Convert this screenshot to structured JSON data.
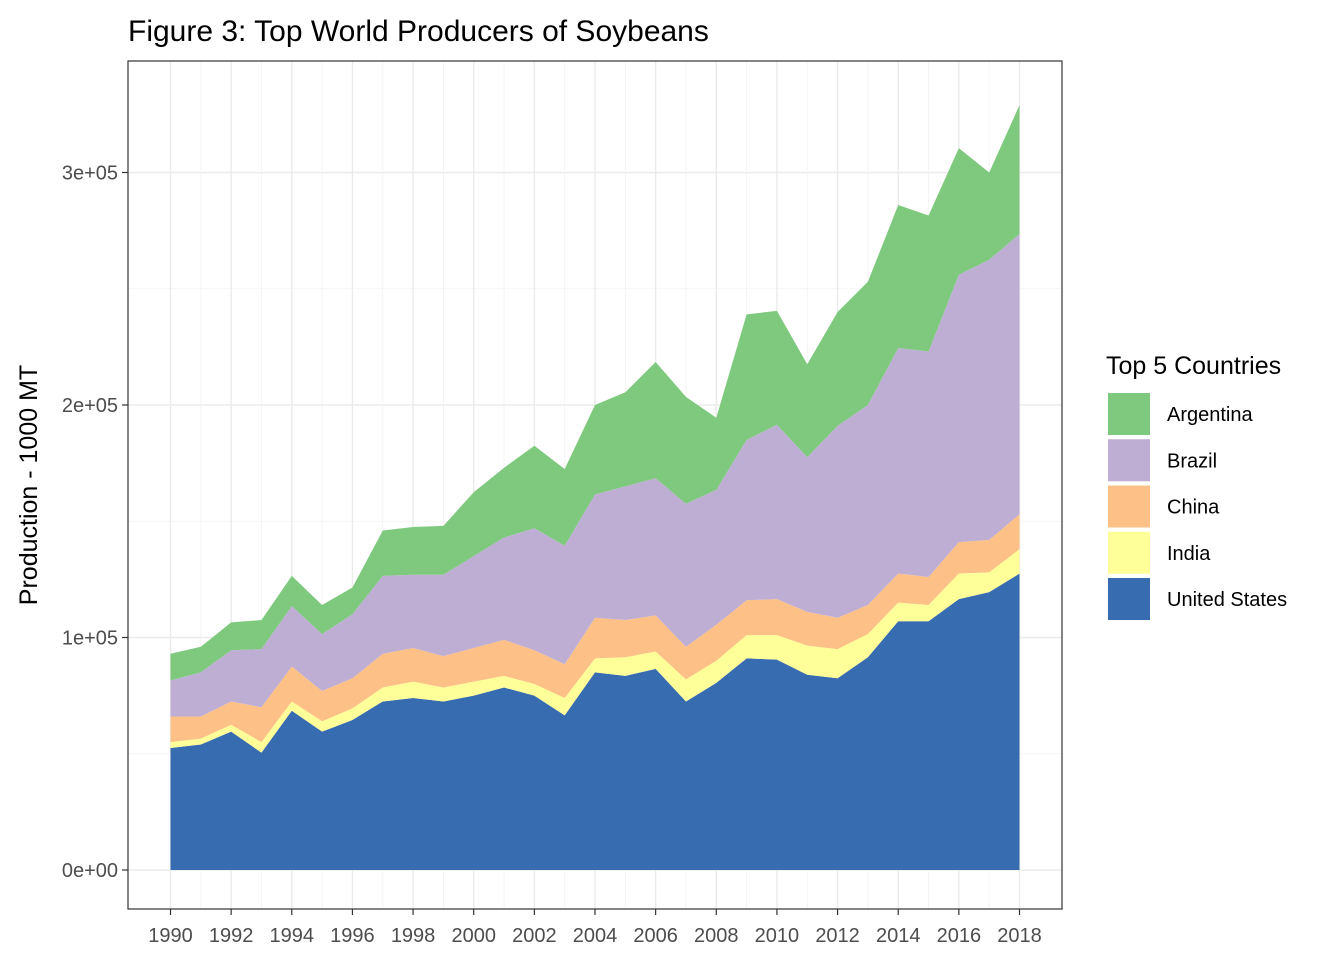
{
  "chart_data": {
    "type": "area",
    "title": "Figure 3: Top World Producers of Soybeans",
    "xlabel": "",
    "ylabel": "Production - 1000 MT",
    "x": [
      1990,
      1991,
      1992,
      1993,
      1994,
      1995,
      1996,
      1997,
      1998,
      1999,
      2000,
      2001,
      2002,
      2003,
      2004,
      2005,
      2006,
      2007,
      2008,
      2009,
      2010,
      2011,
      2012,
      2013,
      2014,
      2015,
      2016,
      2017,
      2018
    ],
    "xlim": [
      1990,
      2018
    ],
    "ylim": [
      0,
      330000
    ],
    "x_ticks": [
      "1990",
      "1992",
      "1994",
      "1996",
      "1998",
      "2000",
      "2002",
      "2004",
      "2006",
      "2008",
      "2010",
      "2012",
      "2014",
      "2016",
      "2018"
    ],
    "y_ticks": [
      "0e+00",
      "1e+05",
      "2e+05",
      "3e+05"
    ],
    "y_tick_values": [
      0,
      100000,
      200000,
      300000
    ],
    "grid": true,
    "stacked": true,
    "legend_title": "Top 5 Countries",
    "legend_position": "right",
    "series": [
      {
        "name": "United States",
        "color": "#386cb0",
        "values": [
          52500,
          54000,
          59500,
          50500,
          68500,
          59500,
          64500,
          72500,
          74000,
          72500,
          75000,
          78500,
          75000,
          66500,
          85000,
          83500,
          86500,
          72500,
          80500,
          91000,
          90500,
          84000,
          82500,
          91500,
          107000,
          107000,
          116500,
          119500,
          127500
        ]
      },
      {
        "name": "India",
        "color": "#ffff99",
        "values": [
          2500,
          2500,
          3000,
          4500,
          4000,
          4500,
          5000,
          6000,
          7000,
          6000,
          6000,
          5000,
          5000,
          7500,
          6000,
          8000,
          7500,
          9500,
          9500,
          10000,
          10500,
          12500,
          12500,
          10000,
          8000,
          7000,
          11000,
          8500,
          10500
        ]
      },
      {
        "name": "China",
        "color": "#fdc086",
        "values": [
          11000,
          9500,
          10000,
          15000,
          15000,
          13000,
          13000,
          14500,
          14500,
          13500,
          14500,
          15500,
          14500,
          14500,
          17500,
          16000,
          15500,
          14000,
          15500,
          15000,
          15500,
          14500,
          13500,
          12500,
          12500,
          12000,
          13500,
          14000,
          15000
        ]
      },
      {
        "name": "Brazil",
        "color": "#beaed4",
        "values": [
          15500,
          19000,
          22000,
          25000,
          26000,
          24500,
          27500,
          33500,
          31500,
          35000,
          39500,
          44000,
          52500,
          51000,
          53000,
          57500,
          59000,
          61500,
          58000,
          69000,
          75000,
          66500,
          82500,
          86000,
          97000,
          97000,
          115000,
          120500,
          120500
        ]
      },
      {
        "name": "Argentina",
        "color": "#7fc97f",
        "values": [
          11500,
          11000,
          12000,
          12500,
          13000,
          12500,
          11500,
          19500,
          20500,
          21000,
          27500,
          30000,
          35500,
          33000,
          38500,
          40500,
          50000,
          46000,
          31000,
          54000,
          49000,
          40000,
          49000,
          53000,
          61500,
          58500,
          54500,
          37500,
          55500
        ]
      }
    ]
  }
}
